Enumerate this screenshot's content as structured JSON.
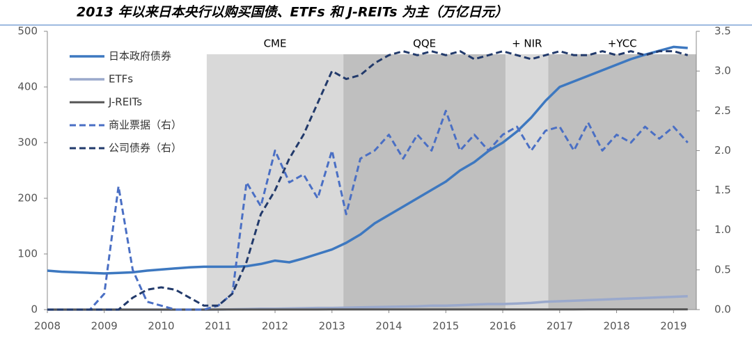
{
  "chart_data": {
    "type": "line",
    "title": "2013 年以来日本央行以购买国债、ETFs 和 J-REITs 为主（万亿日元）",
    "x": [
      2008,
      2008.25,
      2008.5,
      2008.75,
      2009,
      2009.25,
      2009.5,
      2009.75,
      2010,
      2010.25,
      2010.5,
      2010.75,
      2011,
      2011.25,
      2011.5,
      2011.75,
      2012,
      2012.25,
      2012.5,
      2012.75,
      2013,
      2013.25,
      2013.5,
      2013.75,
      2014,
      2014.25,
      2014.5,
      2014.75,
      2015,
      2015.25,
      2015.5,
      2015.75,
      2016,
      2016.25,
      2016.5,
      2016.75,
      2017,
      2017.25,
      2017.5,
      2017.75,
      2018,
      2018.25,
      2018.5,
      2018.75,
      2019,
      2019.25
    ],
    "xlim": [
      2008,
      2019.4
    ],
    "xticks": [
      2008,
      2009,
      2010,
      2011,
      2012,
      2013,
      2014,
      2015,
      2016,
      2017,
      2018,
      2019
    ],
    "ylim": [
      0,
      500
    ],
    "yticks": [
      0,
      100,
      200,
      300,
      400,
      500
    ],
    "y2lim": [
      0,
      3.5
    ],
    "y2ticks": [
      {
        "value": 0,
        "label": "0.0"
      },
      0.5,
      {
        "value": 1,
        "label": "1.0"
      },
      1.5,
      {
        "value": 2,
        "label": "2.0"
      },
      2.5,
      {
        "value": 3,
        "label": "3.0"
      },
      3.5
    ],
    "shaded_regions": [
      {
        "label": "CME",
        "start": 2010.8,
        "end": 2013.2,
        "color": "#d9d9d9"
      },
      {
        "label": "QQE",
        "start": 2013.2,
        "end": 2016.05,
        "color": "#bfbfbf"
      },
      {
        "label": "+ NIR",
        "start": 2016.05,
        "end": 2016.8,
        "color": "#d9d9d9"
      },
      {
        "label": "+YCC",
        "start": 2016.8,
        "end": 2019.4,
        "color": "#bfbfbf"
      }
    ],
    "series": [
      {
        "name": "日本政府债券",
        "color": "#3d78c0",
        "linestyle": "solid",
        "width": 3.5,
        "values": [
          70,
          68,
          67,
          66,
          65,
          66,
          67,
          70,
          72,
          74,
          76,
          77,
          77,
          77,
          78,
          82,
          88,
          85,
          92,
          100,
          108,
          120,
          135,
          155,
          170,
          185,
          200,
          215,
          230,
          250,
          265,
          285,
          300,
          320,
          345,
          375,
          400,
          410,
          420,
          430,
          440,
          450,
          458,
          465,
          472,
          470
        ]
      },
      {
        "name": "ETFs",
        "color": "#9aa9cc",
        "linestyle": "solid",
        "width": 3.5,
        "values": [
          0,
          0,
          0,
          0,
          0,
          0,
          0,
          0,
          0,
          0,
          0,
          0,
          0,
          0.5,
          1,
          1.5,
          1.5,
          2,
          2.5,
          3,
          3,
          3.5,
          4,
          4.5,
          5,
          5.5,
          6,
          7,
          7,
          8,
          9,
          10,
          10,
          11,
          12,
          14,
          15,
          16,
          17,
          18,
          19,
          20,
          21,
          22,
          23,
          24
        ]
      },
      {
        "name": "J-REITs",
        "color": "#555555",
        "linestyle": "solid",
        "width": 3,
        "values": [
          0,
          0,
          0,
          0,
          0,
          0,
          0,
          0,
          0,
          0,
          0,
          0,
          0.1,
          0.1,
          0.1,
          0.1,
          0.1,
          0.1,
          0.1,
          0.1,
          0.2,
          0.2,
          0.2,
          0.2,
          0.3,
          0.3,
          0.3,
          0.3,
          0.3,
          0.3,
          0.3,
          0.3,
          0.4,
          0.4,
          0.4,
          0.4,
          0.4,
          0.4,
          0.5,
          0.5,
          0.5,
          0.5,
          0.5,
          0.5,
          0.5,
          0.5
        ]
      },
      {
        "name": "商业票据（右）",
        "color": "#4a6fc4",
        "linestyle": "dashed",
        "width": 3,
        "axis": "y2",
        "values": [
          0,
          0,
          0,
          0,
          0.2,
          1.55,
          0.5,
          0.1,
          0.05,
          0,
          0,
          0,
          0.05,
          0.2,
          1.6,
          1.3,
          2.0,
          1.6,
          1.7,
          1.4,
          2.0,
          1.2,
          1.9,
          2.0,
          2.2,
          1.9,
          2.2,
          2.0,
          2.5,
          2.0,
          2.2,
          2.0,
          2.2,
          2.3,
          2.0,
          2.25,
          2.3,
          2.0,
          2.35,
          2.0,
          2.2,
          2.1,
          2.3,
          2.15,
          2.3,
          2.1
        ]
      },
      {
        "name": "公司债券（右）",
        "color": "#223a6b",
        "linestyle": "dashed",
        "width": 3,
        "axis": "y2",
        "values": [
          0,
          0,
          0,
          0,
          0,
          0,
          0.15,
          0.25,
          0.28,
          0.25,
          0.15,
          0.05,
          0.05,
          0.2,
          0.6,
          1.2,
          1.5,
          1.9,
          2.2,
          2.6,
          3.0,
          2.9,
          2.95,
          3.1,
          3.2,
          3.25,
          3.2,
          3.25,
          3.2,
          3.25,
          3.15,
          3.2,
          3.25,
          3.2,
          3.15,
          3.2,
          3.25,
          3.2,
          3.2,
          3.25,
          3.2,
          3.25,
          3.2,
          3.25,
          3.25,
          3.2
        ]
      }
    ]
  }
}
